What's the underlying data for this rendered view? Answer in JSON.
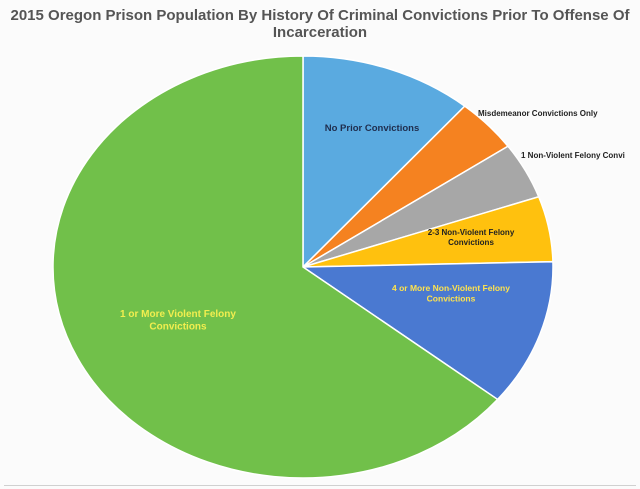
{
  "chart_data": {
    "type": "pie",
    "title": [
      "2015 Oregon Prison Population By History Of Criminal Convictions Prior To Offense Of",
      "Incarceration"
    ],
    "start_angle_deg": 0,
    "direction": "clockwise",
    "slices": [
      {
        "label": [
          "No Prior Convictions"
        ],
        "value": 11.2,
        "color": "#5aaae0",
        "label_color": "#1f2d4d"
      },
      {
        "label": [
          "Misdemeanor Convictions Only"
        ],
        "value": 4.1,
        "color": "#f58220",
        "label_color": "#222222"
      },
      {
        "label": [
          "1 Non-Violent Felony Convi"
        ],
        "value": 4.3,
        "color": "#a7a7a7",
        "label_color": "#222222"
      },
      {
        "label": [
          "2-3 Non-Violent Felony",
          "Convictions"
        ],
        "value": 5.0,
        "color": "#ffc10e",
        "label_color": "#222222"
      },
      {
        "label": [
          "4 or More Non-Violent Felony",
          "Convictions"
        ],
        "value": 11.2,
        "color": "#4a79d1",
        "label_color": "#ffe34d"
      },
      {
        "label": [
          "1 or More Violent Felony",
          "Convictions"
        ],
        "value": 64.2,
        "color": "#71c04a",
        "label_color": "#f1ee4f"
      }
    ]
  }
}
